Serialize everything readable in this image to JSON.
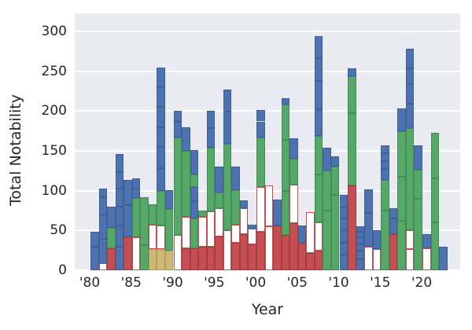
{
  "chart_data": {
    "type": "bar",
    "subtype": "stacked-segments",
    "title": "",
    "xlabel": "Year",
    "ylabel": "Total Notability",
    "xlim": [
      1978.3,
      2024.9
    ],
    "ylim": [
      0,
      322
    ],
    "grid": true,
    "legend": "none",
    "ytick_values": [
      0,
      50,
      100,
      150,
      200,
      250,
      300
    ],
    "ytick_labels": [
      "0",
      "50",
      "100",
      "150",
      "200",
      "250",
      "300"
    ],
    "xtick_years": [
      1980,
      1985,
      1990,
      1995,
      2000,
      2005,
      2010,
      2015,
      2020
    ],
    "xtick_labels": [
      "'80",
      "'85",
      "'90",
      "'95",
      "'00",
      "'05",
      "'10",
      "'15",
      "'20"
    ],
    "colors": {
      "blue": "#4c72b0",
      "blue_edge": "#3f5f95",
      "green": "#55a868",
      "green_edge": "#468c57",
      "red": "#c44e52",
      "red_edge": "#a33d41",
      "tan": "#ccb974",
      "tan_edge": "#b3a05e",
      "ro_fill": "#ffffff",
      "ro_edge": "#c44e52",
      "axes_bg": "#eaeaf2",
      "grid": "#ffffff",
      "text": "#262626"
    },
    "segment_color_key": {
      "b": "blue",
      "g": "green",
      "r": "red",
      "t": "tan",
      "o": "red-outline-white"
    },
    "bars": [
      {
        "year": 1980,
        "total": 48,
        "segments": [
          [
            "b",
            30
          ],
          [
            "b",
            18
          ]
        ]
      },
      {
        "year": 1981,
        "total": 103,
        "segments": [
          [
            "o",
            9
          ],
          [
            "b",
            30
          ],
          [
            "b",
            31
          ],
          [
            "b",
            22
          ],
          [
            "b",
            11
          ]
        ]
      },
      {
        "year": 1982,
        "total": 80,
        "segments": [
          [
            "r",
            28
          ],
          [
            "g",
            25
          ],
          [
            "b",
            27
          ]
        ]
      },
      {
        "year": 1983,
        "total": 146,
        "segments": [
          [
            "b",
            30
          ],
          [
            "b",
            26
          ],
          [
            "b",
            24
          ],
          [
            "b",
            23
          ],
          [
            "b",
            20
          ],
          [
            "b",
            23
          ]
        ]
      },
      {
        "year": 1984,
        "total": 113,
        "segments": [
          [
            "r",
            42
          ],
          [
            "b",
            40
          ],
          [
            "b",
            31
          ]
        ]
      },
      {
        "year": 1985,
        "total": 115,
        "segments": [
          [
            "o",
            41
          ],
          [
            "g",
            50
          ],
          [
            "b",
            12
          ],
          [
            "b",
            12
          ]
        ]
      },
      {
        "year": 1986,
        "total": 92,
        "segments": [
          [
            "g",
            32
          ],
          [
            "g",
            60
          ]
        ]
      },
      {
        "year": 1987,
        "total": 83,
        "segments": [
          [
            "t",
            27
          ],
          [
            "o",
            30
          ],
          [
            "g",
            26
          ]
        ]
      },
      {
        "year": 1988,
        "total": 255,
        "segments": [
          [
            "t",
            27
          ],
          [
            "o",
            29
          ],
          [
            "g",
            44
          ],
          [
            "b",
            28
          ],
          [
            "b",
            27
          ],
          [
            "b",
            25
          ],
          [
            "b",
            25
          ],
          [
            "b",
            25
          ],
          [
            "b",
            25
          ]
        ]
      },
      {
        "year": 1989,
        "total": 101,
        "segments": [
          [
            "t",
            25
          ],
          [
            "g",
            52
          ],
          [
            "b",
            24
          ]
        ]
      },
      {
        "year": 1990,
        "total": 200,
        "segments": [
          [
            "o",
            44
          ],
          [
            "g",
            123
          ],
          [
            "b",
            20
          ],
          [
            "b",
            13
          ]
        ]
      },
      {
        "year": 1991,
        "total": 180,
        "segments": [
          [
            "r",
            28
          ],
          [
            "o",
            39
          ],
          [
            "g",
            83
          ],
          [
            "b",
            30
          ]
        ]
      },
      {
        "year": 1992,
        "total": 151,
        "segments": [
          [
            "r",
            28
          ],
          [
            "g",
            37
          ],
          [
            "b",
            22
          ],
          [
            "b",
            18
          ],
          [
            "g",
            15
          ],
          [
            "b",
            31
          ]
        ]
      },
      {
        "year": 1993,
        "total": 75,
        "segments": [
          [
            "r",
            30
          ],
          [
            "o",
            37
          ],
          [
            "g",
            8
          ]
        ]
      },
      {
        "year": 1994,
        "total": 200,
        "segments": [
          [
            "r",
            30
          ],
          [
            "o",
            44
          ],
          [
            "g",
            80
          ],
          [
            "b",
            25
          ],
          [
            "b",
            21
          ]
        ]
      },
      {
        "year": 1995,
        "total": 130,
        "segments": [
          [
            "r",
            42
          ],
          [
            "o",
            36
          ],
          [
            "g",
            20
          ],
          [
            "b",
            32
          ]
        ]
      },
      {
        "year": 1996,
        "total": 227,
        "segments": [
          [
            "o",
            50
          ],
          [
            "g",
            109
          ],
          [
            "b",
            40
          ],
          [
            "b",
            28
          ]
        ]
      },
      {
        "year": 1997,
        "total": 130,
        "segments": [
          [
            "r",
            35
          ],
          [
            "o",
            22
          ],
          [
            "g",
            44
          ],
          [
            "b",
            29
          ]
        ]
      },
      {
        "year": 1998,
        "total": 88,
        "segments": [
          [
            "r",
            45
          ],
          [
            "o",
            33
          ],
          [
            "b",
            10
          ]
        ]
      },
      {
        "year": 1999,
        "total": 57,
        "segments": [
          [
            "r",
            33
          ],
          [
            "o",
            19
          ],
          [
            "b",
            5
          ]
        ]
      },
      {
        "year": 2000,
        "total": 201,
        "segments": [
          [
            "r",
            48
          ],
          [
            "o",
            57
          ],
          [
            "g",
            62
          ],
          [
            "b",
            20
          ],
          [
            "b",
            14
          ]
        ]
      },
      {
        "year": 2001,
        "total": 107,
        "segments": [
          [
            "o",
            55
          ],
          [
            "o",
            52
          ]
        ]
      },
      {
        "year": 2002,
        "total": 89,
        "segments": [
          [
            "r",
            56
          ],
          [
            "b",
            33
          ]
        ]
      },
      {
        "year": 2003,
        "total": 216,
        "segments": [
          [
            "r",
            44
          ],
          [
            "g",
            56
          ],
          [
            "g",
            64
          ],
          [
            "g",
            44
          ],
          [
            "b",
            8
          ]
        ]
      },
      {
        "year": 2004,
        "total": 166,
        "segments": [
          [
            "r",
            59
          ],
          [
            "o",
            49
          ],
          [
            "g",
            32
          ],
          [
            "b",
            26
          ]
        ]
      },
      {
        "year": 2005,
        "total": 56,
        "segments": [
          [
            "r",
            35
          ],
          [
            "b",
            21
          ]
        ]
      },
      {
        "year": 2006,
        "total": 73,
        "segments": [
          [
            "r",
            22
          ],
          [
            "o",
            51
          ]
        ]
      },
      {
        "year": 2007,
        "total": 294,
        "segments": [
          [
            "r",
            25
          ],
          [
            "o",
            35
          ],
          [
            "g",
            60
          ],
          [
            "g",
            49
          ],
          [
            "b",
            33
          ],
          [
            "b",
            36
          ],
          [
            "b",
            28
          ],
          [
            "b",
            28
          ]
        ]
      },
      {
        "year": 2008,
        "total": 154,
        "segments": [
          [
            "g",
            75
          ],
          [
            "g",
            50
          ],
          [
            "b",
            29
          ]
        ]
      },
      {
        "year": 2009,
        "total": 143,
        "segments": [
          [
            "g",
            95
          ],
          [
            "g",
            35
          ],
          [
            "b",
            13
          ]
        ]
      },
      {
        "year": 2010,
        "total": 95,
        "segments": [
          [
            "b",
            20
          ],
          [
            "b",
            15
          ],
          [
            "b",
            15
          ],
          [
            "b",
            15
          ],
          [
            "b",
            14
          ],
          [
            "b",
            16
          ]
        ]
      },
      {
        "year": 2011,
        "total": 254,
        "segments": [
          [
            "r",
            107
          ],
          [
            "g",
            90
          ],
          [
            "g",
            47
          ],
          [
            "b",
            10
          ]
        ]
      },
      {
        "year": 2012,
        "total": 55,
        "segments": [
          [
            "b",
            14
          ],
          [
            "b",
            11
          ],
          [
            "b",
            8
          ],
          [
            "b",
            8
          ],
          [
            "b",
            7
          ],
          [
            "b",
            7
          ]
        ]
      },
      {
        "year": 2013,
        "total": 102,
        "segments": [
          [
            "o",
            30
          ],
          [
            "b",
            42
          ],
          [
            "b",
            30
          ]
        ]
      },
      {
        "year": 2014,
        "total": 50,
        "segments": [
          [
            "o",
            27
          ],
          [
            "b",
            23
          ]
        ]
      },
      {
        "year": 2015,
        "total": 157,
        "segments": [
          [
            "g",
            75
          ],
          [
            "g",
            38
          ],
          [
            "b",
            14
          ],
          [
            "b",
            10
          ],
          [
            "b",
            10
          ],
          [
            "b",
            10
          ]
        ]
      },
      {
        "year": 2016,
        "total": 78,
        "segments": [
          [
            "r",
            45
          ],
          [
            "b",
            20
          ],
          [
            "b",
            13
          ]
        ]
      },
      {
        "year": 2017,
        "total": 203,
        "segments": [
          [
            "g",
            62
          ],
          [
            "g",
            55
          ],
          [
            "g",
            58
          ],
          [
            "b",
            28
          ]
        ]
      },
      {
        "year": 2018,
        "total": 278,
        "segments": [
          [
            "o",
            27
          ],
          [
            "o",
            23
          ],
          [
            "g",
            129
          ],
          [
            "b",
            30
          ],
          [
            "b",
            25
          ],
          [
            "b",
            20
          ],
          [
            "b",
            24
          ]
        ]
      },
      {
        "year": 2019,
        "total": 157,
        "segments": [
          [
            "g",
            90
          ],
          [
            "g",
            36
          ],
          [
            "b",
            31
          ]
        ]
      },
      {
        "year": 2020,
        "total": 45,
        "segments": [
          [
            "o",
            28
          ],
          [
            "b",
            17
          ]
        ]
      },
      {
        "year": 2021,
        "total": 173,
        "segments": [
          [
            "g",
            60
          ],
          [
            "g",
            55
          ],
          [
            "g",
            58
          ]
        ]
      },
      {
        "year": 2022,
        "total": 30,
        "segments": [
          [
            "b",
            30
          ]
        ]
      }
    ]
  }
}
